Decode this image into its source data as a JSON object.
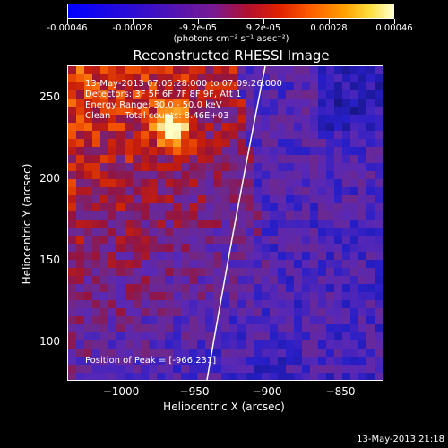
{
  "colorbar": {
    "tick_labels": [
      "-0.00046",
      "-0.00028",
      "-9.2e-05",
      "9.2e-05",
      "0.00028",
      "0.00046"
    ],
    "units": "(photons cm⁻² s⁻¹ asec⁻²)"
  },
  "title": "Reconstructed RHESSI Image",
  "info": {
    "time_range": "13-May-2013 07:05:28.000 to 07:09:26.000",
    "detectors": "Detectors: 3F 5F 6F 7F 8F 9F, Att 1",
    "energy": "Energy Range: 30.0 - 50.0 keV",
    "clean": "Clean     Total counts: 8.46E+03",
    "peak": "Position of Peak = [-966,231]"
  },
  "axes": {
    "xlabel": "Heliocentric X (arcsec)",
    "ylabel": "Heliocentric Y (arcsec)",
    "x_ticks": [
      "−1000",
      "−950",
      "−900",
      "−850"
    ],
    "y_ticks": [
      "250",
      "200",
      "150",
      "100"
    ]
  },
  "timestamp": "13-May-2013 21:18"
}
